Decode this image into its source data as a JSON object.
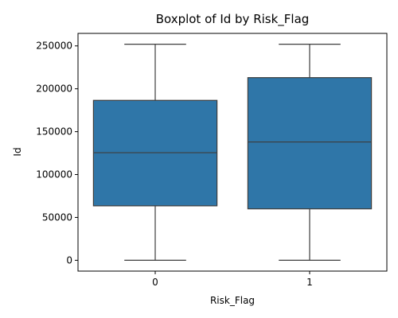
{
  "chart_data": {
    "type": "boxplot",
    "title": "Boxplot of Id by Risk_Flag",
    "xlabel": "Risk_Flag",
    "ylabel": "Id",
    "categories": [
      "0",
      "1"
    ],
    "ylim": [
      -12600,
      264600
    ],
    "yticks": [
      0,
      50000,
      100000,
      150000,
      200000,
      250000
    ],
    "yticklabels": [
      "0",
      "50000",
      "100000",
      "150000",
      "200000",
      "250000"
    ],
    "grid": false,
    "legend": "none",
    "box_color": "#2f76a8",
    "line_color": "#3d3d3d",
    "boxes": [
      {
        "category": "0",
        "whisker_low": 0,
        "q1": 63500,
        "median": 125500,
        "q3": 186500,
        "whisker_high": 252000
      },
      {
        "category": "1",
        "whisker_low": 0,
        "q1": 60000,
        "median": 138000,
        "q3": 213000,
        "whisker_high": 252000
      }
    ]
  }
}
